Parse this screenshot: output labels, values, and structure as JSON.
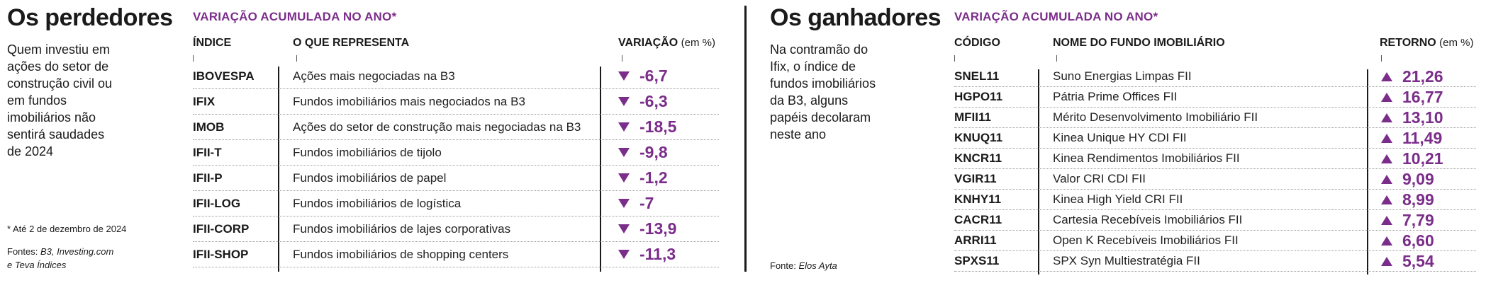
{
  "losers": {
    "title": "Os perdedores",
    "intro": "Quem investiu em ações do setor de construção civil ou em fundos imobiliários não sentirá saudades de 2024",
    "footnote": "* Até 2 de dezembro de 2024",
    "source_prefix": "Fontes: ",
    "source_names": "B3, Investing.com e Teva Índices",
    "table_title": "VARIAÇÃO ACUMULADA NO ANO*",
    "col_code": "ÍNDICE",
    "col_desc": "O QUE REPRESENTA",
    "col_val": "VARIAÇÃO",
    "col_val_unit": "(em %)",
    "rows": [
      {
        "code": "IBOVESPA",
        "desc": "Ações mais negociadas na B3",
        "value": "-6,7",
        "direction": "down"
      },
      {
        "code": "IFIX",
        "desc": "Fundos imobiliários mais negociados na B3",
        "value": "-6,3",
        "direction": "down"
      },
      {
        "code": "IMOB",
        "desc": "Ações do setor de construção mais negociadas na B3",
        "value": "-18,5",
        "direction": "down"
      },
      {
        "code": "IFII-T",
        "desc": "Fundos imobiliários de tijolo",
        "value": "-9,8",
        "direction": "down"
      },
      {
        "code": "IFII-P",
        "desc": "Fundos imobiliários de papel",
        "value": "-1,2",
        "direction": "down"
      },
      {
        "code": "IFII-LOG",
        "desc": "Fundos imobiliários de logística",
        "value": "-7",
        "direction": "down"
      },
      {
        "code": "IFII-CORP",
        "desc": "Fundos imobiliários de lajes corporativas",
        "value": "-13,9",
        "direction": "down"
      },
      {
        "code": "IFII-SHOP",
        "desc": "Fundos imobiliários de shopping centers",
        "value": "-11,3",
        "direction": "down"
      }
    ]
  },
  "winners": {
    "title": "Os ganhadores",
    "intro": "Na contramão do Ifix, o índice de fundos imobiliários da B3, alguns papéis decolaram neste ano",
    "source_prefix": "Fonte: ",
    "source_names": "Elos Ayta",
    "table_title": "VARIAÇÃO ACUMULADA NO ANO*",
    "col_code": "CÓDIGO",
    "col_desc": "NOME DO FUNDO IMOBILIÁRIO",
    "col_val": "RETORNO",
    "col_val_unit": "(em %)",
    "rows": [
      {
        "code": "SNEL11",
        "desc": "Suno Energias Limpas FII",
        "value": "21,26",
        "direction": "up"
      },
      {
        "code": "HGPO11",
        "desc": "Pátria Prime Offices FII",
        "value": "16,77",
        "direction": "up"
      },
      {
        "code": "MFII11",
        "desc": "Mérito Desenvolvimento Imobiliário FII",
        "value": "13,10",
        "direction": "up"
      },
      {
        "code": "KNUQ11",
        "desc": "Kinea Unique HY CDI FII",
        "value": "11,49",
        "direction": "up"
      },
      {
        "code": "KNCR11",
        "desc": "Kinea Rendimentos Imobiliários FII",
        "value": "10,21",
        "direction": "up"
      },
      {
        "code": "VGIR11",
        "desc": "Valor CRI CDI FII",
        "value": "9,09",
        "direction": "up"
      },
      {
        "code": "KNHY11",
        "desc": "Kinea High Yield CRI FII",
        "value": "8,99",
        "direction": "up"
      },
      {
        "code": "CACR11",
        "desc": "Cartesia Recebíveis Imobiliários FII",
        "value": "7,79",
        "direction": "up"
      },
      {
        "code": "ARRI11",
        "desc": "Open K Recebíveis Imobiliários FII",
        "value": "6,60",
        "direction": "up"
      },
      {
        "code": "SPXS11",
        "desc": "SPX Syn Multiestratégia FII",
        "value": "5,54",
        "direction": "up"
      }
    ]
  },
  "colors": {
    "accent": "#7b2d8a",
    "text": "#1a1a1a"
  }
}
